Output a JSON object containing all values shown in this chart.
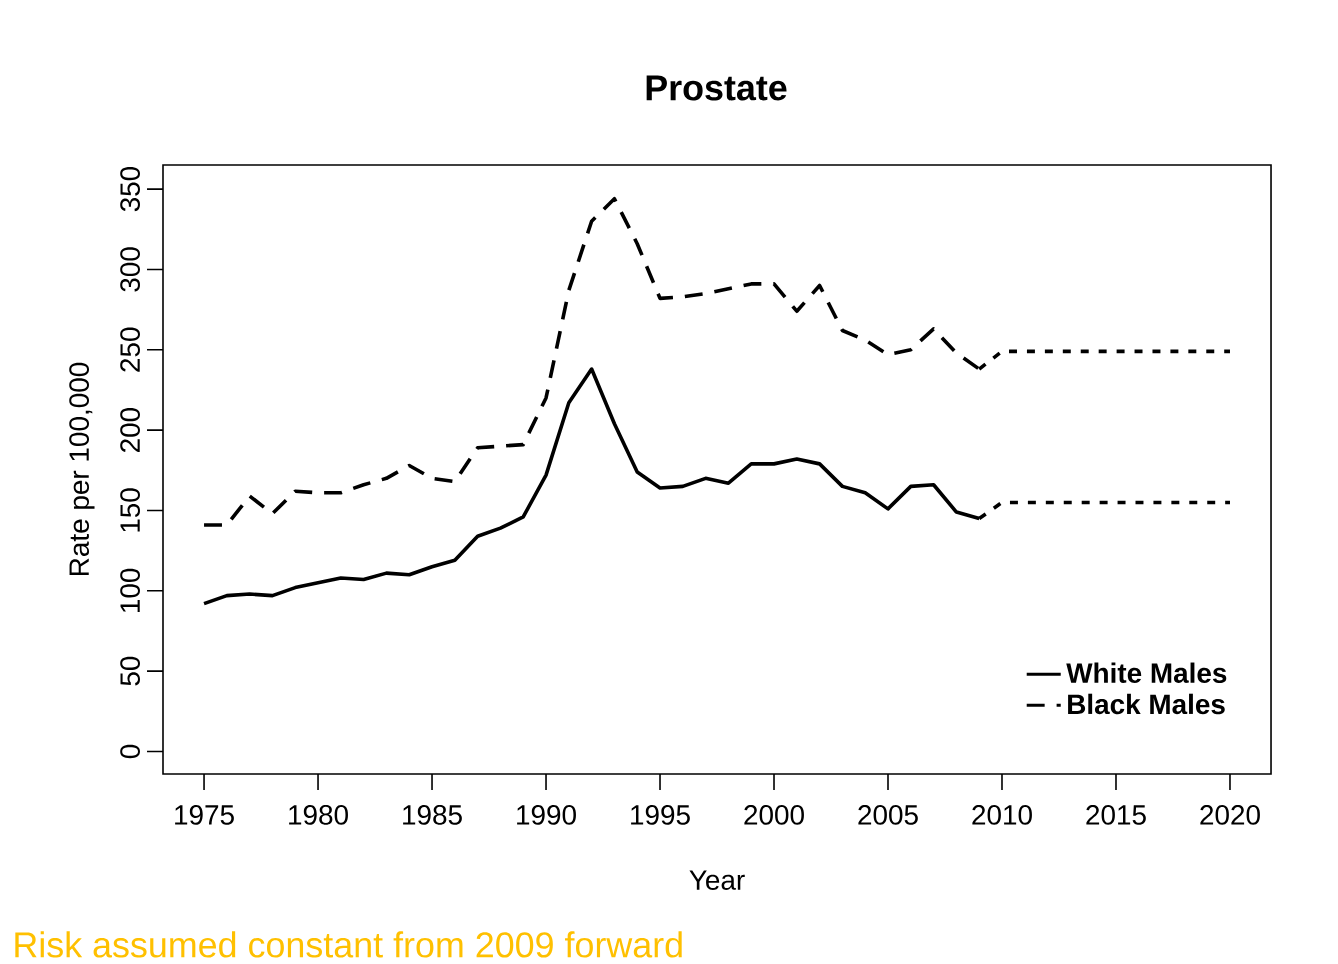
{
  "chart_data": {
    "type": "line",
    "title": "Prostate",
    "xlabel": "Year",
    "ylabel": "Rate per 100,000",
    "annotations": [
      "Risk assumed constant from 2009 forward"
    ],
    "x": [
      1975,
      1976,
      1977,
      1978,
      1979,
      1980,
      1981,
      1982,
      1983,
      1984,
      1985,
      1986,
      1987,
      1988,
      1989,
      1990,
      1991,
      1992,
      1993,
      1994,
      1995,
      1996,
      1997,
      1998,
      1999,
      2000,
      2001,
      2002,
      2003,
      2004,
      2005,
      2006,
      2007,
      2008,
      2009
    ],
    "series": [
      {
        "name": "White Males",
        "color": "#000000",
        "line_style": "solid",
        "values": [
          92,
          97,
          98,
          97,
          102,
          105,
          108,
          107,
          111,
          110,
          115,
          119,
          134,
          139,
          146,
          172,
          217,
          238,
          204,
          174,
          164,
          165,
          170,
          167,
          179,
          179,
          182,
          179,
          165,
          161,
          151,
          165,
          166,
          149,
          145
        ]
      },
      {
        "name": "Black Males",
        "color": "#000000",
        "line_style": "dashed",
        "values": [
          141,
          141,
          159,
          148,
          162,
          161,
          161,
          166,
          170,
          178,
          170,
          168,
          189,
          190,
          191,
          220,
          287,
          330,
          344,
          316,
          282,
          283,
          285,
          288,
          291,
          291,
          274,
          290,
          262,
          256,
          247,
          250,
          263,
          248,
          238
        ]
      },
      {
        "color": "#000000",
        "line_style": "dotted",
        "x": [
          2009,
          2010,
          2020
        ],
        "values": [
          145,
          155,
          155
        ]
      },
      {
        "color": "#000000",
        "line_style": "dotted",
        "x": [
          2009,
          2010,
          2020
        ],
        "values": [
          238,
          249,
          249
        ]
      }
    ],
    "xlim": [
      1973.2,
      2021.8
    ],
    "ylim": [
      -14,
      365
    ],
    "xticks": [
      1975,
      1980,
      1985,
      1990,
      1995,
      2000,
      2005,
      2010,
      2015,
      2020
    ],
    "yticks": [
      0,
      50,
      100,
      150,
      200,
      250,
      300,
      350
    ],
    "legend": "bottom right",
    "marker": "none",
    "grid": false
  }
}
